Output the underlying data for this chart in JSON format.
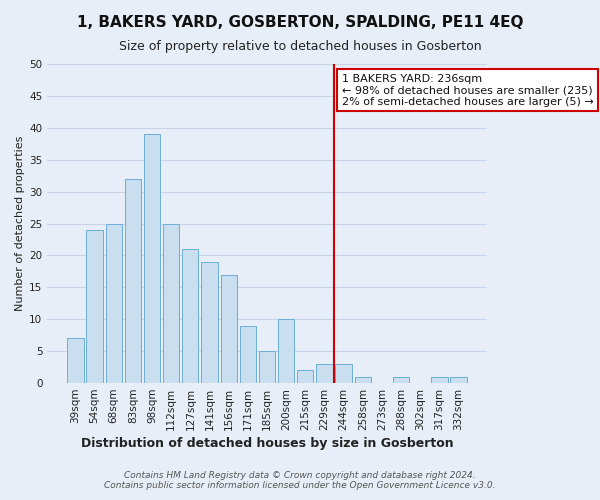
{
  "title": "1, BAKERS YARD, GOSBERTON, SPALDING, PE11 4EQ",
  "subtitle": "Size of property relative to detached houses in Gosberton",
  "xlabel": "Distribution of detached houses by size in Gosberton",
  "ylabel": "Number of detached properties",
  "footer_line1": "Contains HM Land Registry data © Crown copyright and database right 2024.",
  "footer_line2": "Contains public sector information licensed under the Open Government Licence v3.0.",
  "categories": [
    "39sqm",
    "54sqm",
    "68sqm",
    "83sqm",
    "98sqm",
    "112sqm",
    "127sqm",
    "141sqm",
    "156sqm",
    "171sqm",
    "185sqm",
    "200sqm",
    "215sqm",
    "229sqm",
    "244sqm",
    "258sqm",
    "273sqm",
    "288sqm",
    "302sqm",
    "317sqm",
    "332sqm"
  ],
  "values": [
    7,
    24,
    25,
    32,
    39,
    25,
    21,
    19,
    17,
    9,
    5,
    10,
    2,
    3,
    3,
    1,
    0,
    1,
    0,
    1,
    1
  ],
  "bar_color": "#c9dff0",
  "bar_edge_color": "#6baed6",
  "ylim": [
    0,
    50
  ],
  "yticks": [
    0,
    5,
    10,
    15,
    20,
    25,
    30,
    35,
    40,
    45,
    50
  ],
  "vline_color": "#cc0000",
  "annotation_box_text": "1 BAKERS YARD: 236sqm\n← 98% of detached houses are smaller (235)\n2% of semi-detached houses are larger (5) →",
  "annotation_box_color": "#cc0000",
  "annotation_box_bg": "#ffffff",
  "background_color": "#e8eef7",
  "grid_color": "#c8d4e8",
  "title_fontsize": 11,
  "subtitle_fontsize": 9,
  "xlabel_fontsize": 9,
  "ylabel_fontsize": 8,
  "tick_fontsize": 7.5,
  "annot_fontsize": 8,
  "footer_fontsize": 6.5
}
